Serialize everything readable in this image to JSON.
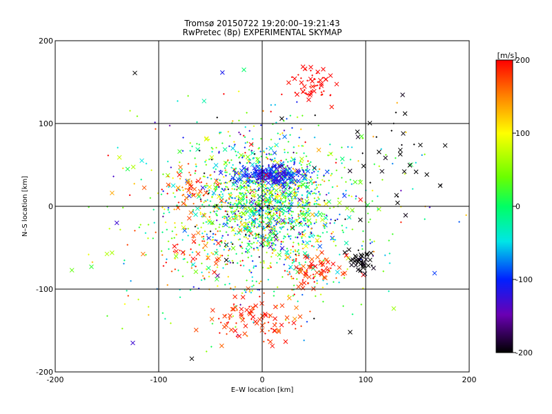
{
  "chart_data": {
    "type": "scatter",
    "title": "Tromsø 20150722 19:20:00–19:21:43",
    "subtitle": "RwPretec (8p) EXPERIMENTAL SKYMAP",
    "xlabel": "E–W location [km]",
    "ylabel": "N–S location [km]",
    "xlim": [
      -200,
      200
    ],
    "ylim": [
      -200,
      200
    ],
    "x_ticks": [
      "-200",
      "-100",
      "0",
      "100",
      "200"
    ],
    "y_ticks": [
      "-200",
      "-100",
      "0",
      "100",
      "200"
    ],
    "grid": true,
    "markers": [
      "cross",
      "x"
    ],
    "colorbar": {
      "label": "[m/s]",
      "range": [
        -200,
        200
      ],
      "ticks": [
        "200",
        "100",
        "0",
        "-100",
        "-200"
      ],
      "colormap": "rainbow: black (-200) → purple → blue (-100) → cyan → green (0) → yellow (100) → orange → red (200)"
    },
    "clusters": [
      {
        "region": "north-center dense band",
        "x": [
          -20,
          30
        ],
        "y": [
          25,
          50
        ],
        "velocity_mean": -110
      },
      {
        "region": "central core",
        "x": [
          -30,
          30
        ],
        "y": [
          -40,
          25
        ],
        "velocity_mean": -10
      },
      {
        "region": "north outlier group",
        "x": [
          40,
          70
        ],
        "y": [
          120,
          170
        ],
        "velocity_mean": 200
      },
      {
        "region": "south group",
        "x": [
          -40,
          20
        ],
        "y": [
          -165,
          -120
        ],
        "velocity_mean": 180
      },
      {
        "region": "south-east group",
        "x": [
          40,
          80
        ],
        "y": [
          -90,
          -60
        ],
        "velocity_mean": 185
      },
      {
        "region": "east fringe",
        "x": [
          80,
          180
        ],
        "y": [
          -75,
          110
        ],
        "velocity_mean": -200
      },
      {
        "region": "west-north group",
        "x": [
          -90,
          -50
        ],
        "y": [
          0,
          35
        ],
        "velocity_mean": 170
      }
    ],
    "sample_points": [
      {
        "x": -123,
        "y": 161,
        "v": -200,
        "m": "x"
      },
      {
        "x": 47,
        "y": 168,
        "v": 200,
        "m": "x"
      },
      {
        "x": 92,
        "y": 90,
        "v": -200,
        "m": "x"
      },
      {
        "x": 138,
        "y": 112,
        "v": -200,
        "m": "x"
      },
      {
        "x": 172,
        "y": 25,
        "v": -200,
        "m": "x"
      },
      {
        "x": -130,
        "y": 45,
        "v": 10,
        "m": "x"
      },
      {
        "x": -165,
        "y": -73,
        "v": 20,
        "m": "x"
      },
      {
        "x": -125,
        "y": -165,
        "v": -130,
        "m": "x"
      },
      {
        "x": -68,
        "y": -184,
        "v": -200,
        "m": "x"
      },
      {
        "x": 85,
        "y": -152,
        "v": -200,
        "m": "x"
      },
      {
        "x": -80,
        "y": 38,
        "v": 195,
        "m": "x"
      },
      {
        "x": 95,
        "y": 8,
        "v": 200,
        "m": "x"
      },
      {
        "x": 90,
        "y": -60,
        "v": -200,
        "m": "x"
      },
      {
        "x": 95,
        "y": -70,
        "v": -200,
        "m": "x"
      }
    ]
  }
}
